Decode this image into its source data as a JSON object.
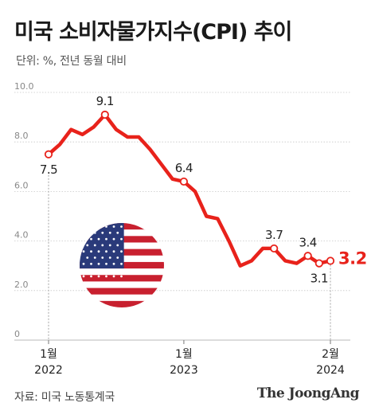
{
  "header": {
    "title": "미국 소비자물가지수(CPI) 추이",
    "subtitle": "단위: %, 전년 동월 대비"
  },
  "footer": {
    "source": "자료: 미국 노동통계국",
    "brand": "The JoongAng"
  },
  "colors": {
    "line": "#e8221b",
    "grid": "#c8c8c8",
    "axis_text": "#888888",
    "highlight_label": "#e8221b"
  },
  "flag_icon": "us-flag-icon",
  "chart_data": {
    "type": "line",
    "title": "미국 소비자물가지수(CPI) 추이",
    "ylabel": "단위: %, 전년 동월 대비",
    "ylim": [
      0,
      10
    ],
    "yticks": [
      "0",
      "2.0",
      "4.0",
      "6.0",
      "8.0",
      "10.0"
    ],
    "x_ticks": [
      {
        "month": "1월",
        "year": "2022",
        "index": 0
      },
      {
        "month": "1월",
        "year": "2023",
        "index": 12
      },
      {
        "month": "2월",
        "year": "2024",
        "index": 25
      }
    ],
    "grid": true,
    "series": [
      {
        "values": [
          7.5,
          7.9,
          8.5,
          8.3,
          8.6,
          9.1,
          8.5,
          8.2,
          8.2,
          7.7,
          7.1,
          6.5,
          6.4,
          6.0,
          5.0,
          4.9,
          4.0,
          3.0,
          3.2,
          3.7,
          3.7,
          3.2,
          3.1,
          3.4,
          3.1,
          3.2
        ]
      }
    ],
    "annotations": [
      {
        "index": 0,
        "label": "7.5",
        "pos": "below"
      },
      {
        "index": 5,
        "label": "9.1",
        "pos": "above"
      },
      {
        "index": 12,
        "label": "6.4",
        "pos": "above"
      },
      {
        "index": 20,
        "label": "3.7",
        "pos": "above"
      },
      {
        "index": 23,
        "label": "3.4",
        "pos": "above"
      },
      {
        "index": 24,
        "label": "3.1",
        "pos": "below"
      },
      {
        "index": 25,
        "label": "3.2",
        "pos": "right",
        "highlight": true
      }
    ]
  }
}
